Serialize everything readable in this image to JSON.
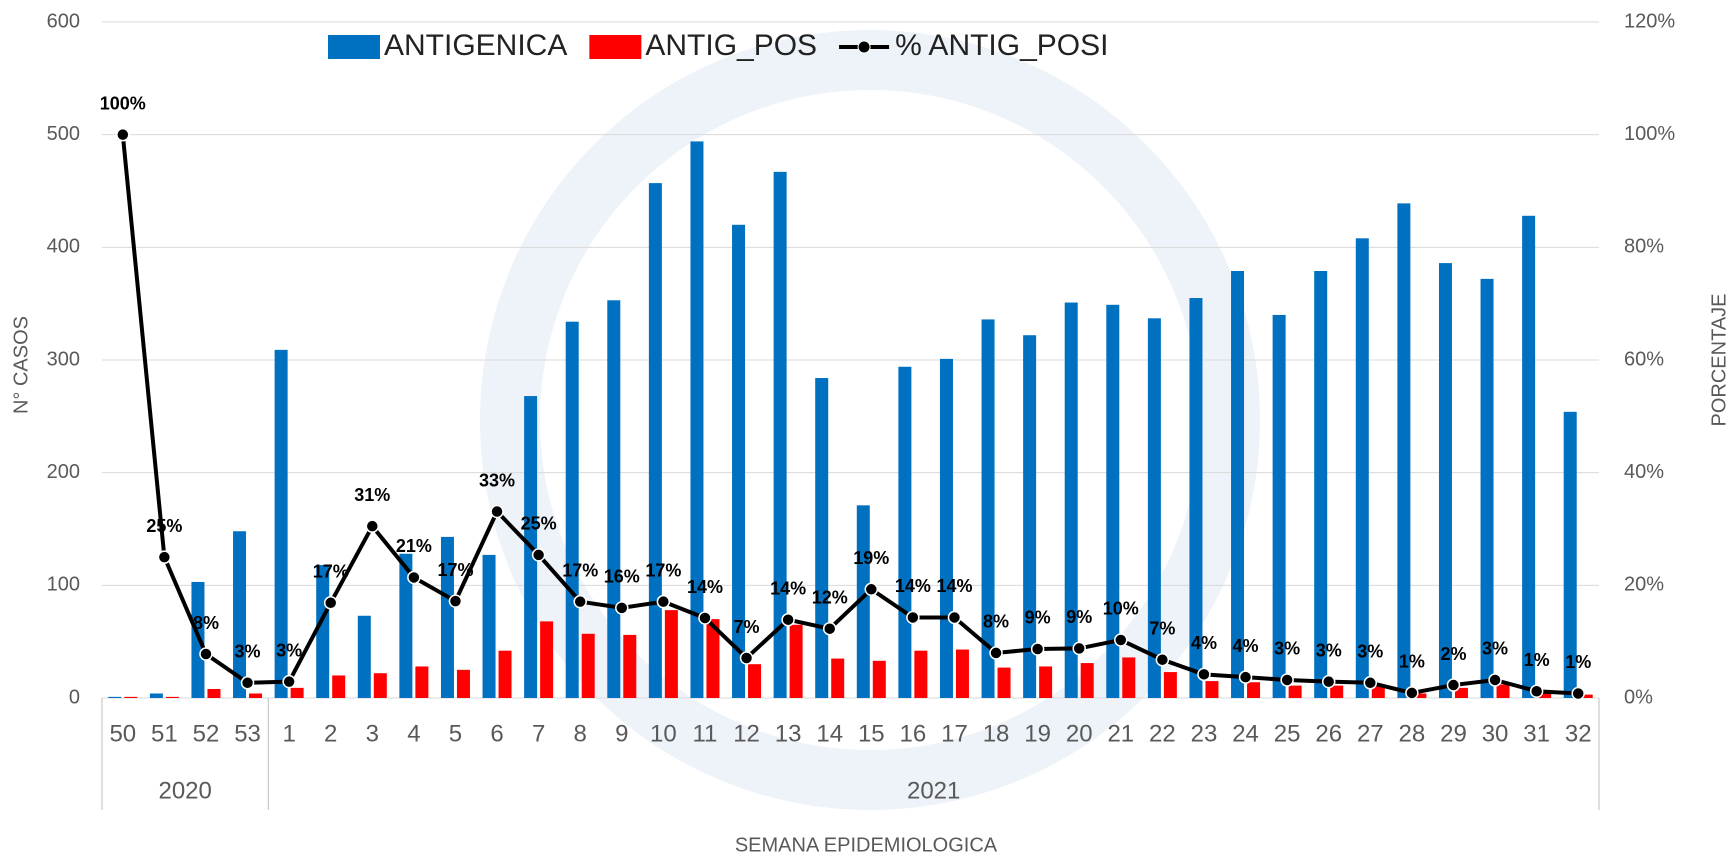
{
  "chart_data": {
    "type": "bar",
    "x_label": "SEMANA EPIDEMIOLOGICA",
    "y_label": "N° CASOS",
    "y2_label": "PORCENTAJE",
    "categories": [
      "50",
      "51",
      "52",
      "53",
      "1",
      "2",
      "3",
      "4",
      "5",
      "6",
      "7",
      "8",
      "9",
      "10",
      "11",
      "12",
      "13",
      "14",
      "15",
      "16",
      "17",
      "18",
      "19",
      "20",
      "21",
      "22",
      "23",
      "24",
      "25",
      "26",
      "27",
      "28",
      "29",
      "30",
      "31",
      "32"
    ],
    "groups": [
      {
        "label": "2020",
        "span": 4
      },
      {
        "label": "2021",
        "span": 32
      }
    ],
    "series": [
      {
        "name": "ANTIGENICA",
        "type": "bar",
        "color": "#0070c0",
        "values": [
          1,
          4,
          103,
          148,
          309,
          118,
          73,
          128,
          143,
          127,
          268,
          334,
          353,
          457,
          494,
          420,
          467,
          284,
          171,
          294,
          301,
          336,
          322,
          351,
          349,
          337,
          355,
          379,
          340,
          379,
          408,
          439,
          386,
          372,
          428,
          254
        ]
      },
      {
        "name": "ANTIG_POS",
        "type": "bar",
        "color": "#ff0000",
        "values": [
          1,
          1,
          8,
          4,
          9,
          20,
          22,
          28,
          25,
          42,
          68,
          57,
          56,
          78,
          70,
          30,
          65,
          35,
          33,
          42,
          43,
          27,
          28,
          31,
          36,
          23,
          15,
          14,
          11,
          11,
          11,
          4,
          9,
          12,
          5,
          3
        ]
      },
      {
        "name": "% ANTIG_POSI",
        "type": "line",
        "axis": "y2",
        "color": "#000000",
        "values": [
          100,
          25,
          7.8,
          2.7,
          2.9,
          16.9,
          30.5,
          21.4,
          17.2,
          33.1,
          25.4,
          17.1,
          16.0,
          17.1,
          14.2,
          7.1,
          13.9,
          12.3,
          19.3,
          14.3,
          14.3,
          8.0,
          8.7,
          8.8,
          10.3,
          6.8,
          4.2,
          3.7,
          3.2,
          2.9,
          2.7,
          0.9,
          2.3,
          3.2,
          1.2,
          0.8
        ],
        "value_labels": [
          "100%",
          "25%",
          "8%",
          "3%",
          "3%",
          "17%",
          "31%",
          "21%",
          "17%",
          "33%",
          "25%",
          "17%",
          "16%",
          "17%",
          "14%",
          "7%",
          "14%",
          "12%",
          "19%",
          "14%",
          "14%",
          "8%",
          "9%",
          "9%",
          "10%",
          "7%",
          "4%",
          "4%",
          "3%",
          "3%",
          "3%",
          "1%",
          "2%",
          "3%",
          "1%",
          "1%"
        ]
      }
    ],
    "ylim": [
      0,
      600
    ],
    "yticks": [
      0,
      100,
      200,
      300,
      400,
      500,
      600
    ],
    "y2lim": [
      0,
      120
    ],
    "y2ticks": [
      {
        "value": 0,
        "label": "0%"
      },
      {
        "value": 20,
        "label": "20%"
      },
      {
        "value": 40,
        "label": "40%"
      },
      {
        "value": 60,
        "label": "60%"
      },
      {
        "value": 80,
        "label": "80%"
      },
      {
        "value": 100,
        "label": "100%"
      },
      {
        "value": 120,
        "label": "120%"
      }
    ],
    "grid": true,
    "legend": "top"
  }
}
